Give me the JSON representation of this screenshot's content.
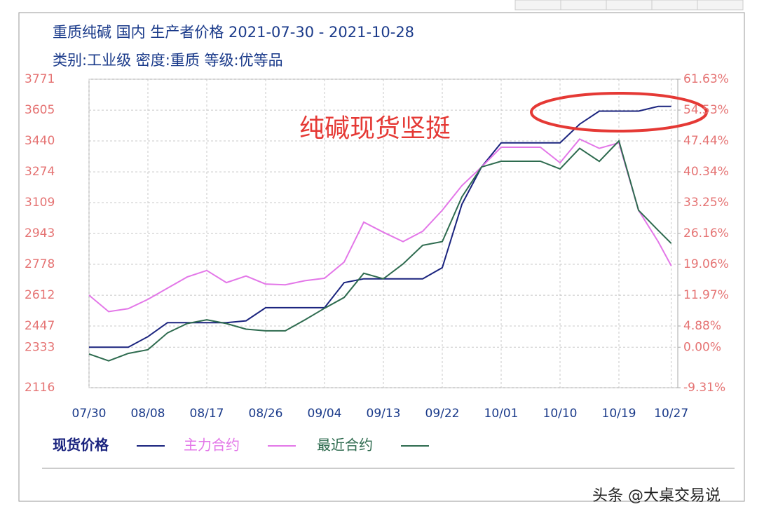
{
  "chart_data": {
    "type": "line",
    "title": "重质纯碱 国内 生产者价格 2021-07-30 - 2021-10-28",
    "subtitle": "类别:工业级 密度:重质 等级:优等品",
    "annotation": "纯碱现货坚挺",
    "watermark": "头条 @大桌交易说",
    "x": [
      "07/30",
      "08/02",
      "08/05",
      "08/08",
      "08/11",
      "08/14",
      "08/17",
      "08/20",
      "08/23",
      "08/26",
      "08/29",
      "09/01",
      "09/04",
      "09/07",
      "09/10",
      "09/13",
      "09/16",
      "09/19",
      "09/22",
      "09/25",
      "09/28",
      "10/01",
      "10/04",
      "10/07",
      "10/10",
      "10/13",
      "10/16",
      "10/19",
      "10/22",
      "10/25",
      "10/27"
    ],
    "xlim": [
      "07/30",
      "10/28"
    ],
    "xticks": [
      "07/30",
      "08/08",
      "08/17",
      "08/26",
      "09/04",
      "09/13",
      "09/22",
      "10/01",
      "10/10",
      "10/19",
      "10/27"
    ],
    "series": [
      {
        "name": "现货价格",
        "color": "#1a237e",
        "values": [
          2333,
          2333,
          2333,
          2390,
          2465,
          2465,
          2465,
          2465,
          2475,
          2545,
          2545,
          2545,
          2545,
          2680,
          2700,
          2700,
          2700,
          2700,
          2760,
          3100,
          3300,
          3430,
          3430,
          3430,
          3430,
          3530,
          3600,
          3600,
          3600,
          3625,
          3625
        ]
      },
      {
        "name": "主力合约",
        "color": "#e377e8",
        "values": [
          2612,
          2524,
          2540,
          2590,
          2650,
          2710,
          2745,
          2680,
          2715,
          2672,
          2668,
          2690,
          2703,
          2790,
          3004,
          2950,
          2900,
          2955,
          3068,
          3200,
          3300,
          3406,
          3406,
          3406,
          3323,
          3450,
          3400,
          3430,
          3068,
          2900,
          2770
        ]
      },
      {
        "name": "最近合约",
        "color": "#2e6b4f",
        "values": [
          2297,
          2260,
          2300,
          2320,
          2410,
          2460,
          2480,
          2460,
          2430,
          2421,
          2421,
          2480,
          2542,
          2600,
          2730,
          2700,
          2780,
          2880,
          2900,
          3140,
          3300,
          3331,
          3331,
          3331,
          3290,
          3400,
          3330,
          3440,
          3068,
          2960,
          2890
        ]
      }
    ],
    "ylim": [
      2116,
      3771
    ],
    "yticks": [
      2116,
      2333,
      2447,
      2612,
      2778,
      2943,
      3109,
      3274,
      3440,
      3605,
      3771
    ],
    "y2lim": [
      -9.31,
      61.63
    ],
    "y2ticks": [
      {
        "value": -9.31,
        "label": "-9.31%"
      },
      {
        "value": 0,
        "label": "0.00%"
      },
      {
        "value": 4.88,
        "label": "4.88%"
      },
      {
        "value": 11.97,
        "label": "11.97%"
      },
      {
        "value": 19.06,
        "label": "19.06%"
      },
      {
        "value": 26.16,
        "label": "26.16%"
      },
      {
        "value": 33.25,
        "label": "33.25%"
      },
      {
        "value": 40.34,
        "label": "40.34%"
      },
      {
        "value": 47.44,
        "label": "47.44%"
      },
      {
        "value": 54.53,
        "label": "54.53%"
      },
      {
        "value": 61.63,
        "label": "61.63%"
      }
    ],
    "grid": true
  }
}
